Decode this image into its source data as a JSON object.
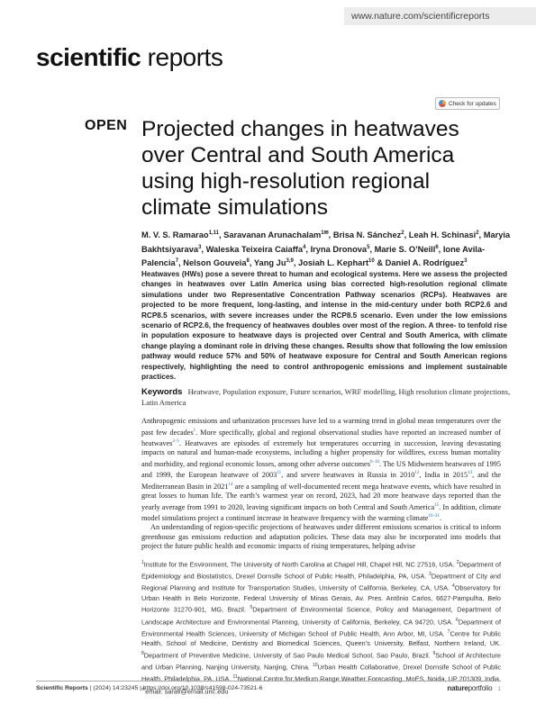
{
  "header": {
    "url": "www.nature.com/scientificreports"
  },
  "journal": {
    "bold": "scientific",
    "regular": " reports"
  },
  "check_for_updates": "Check for updates",
  "open_label": "OPEN",
  "title": "Projected changes in heatwaves over Central and South America using high-resolution regional climate simulations",
  "authors": [
    {
      "name": "M. V. S. Ramarao",
      "sup": "1,11",
      "sep": ", "
    },
    {
      "name": "Saravanan Arunachalam",
      "sup": "1✉",
      "sep": ", "
    },
    {
      "name": "Brisa N. Sánchez",
      "sup": "2",
      "sep": ", "
    },
    {
      "name": "Leah H. Schinasi",
      "sup": "2",
      "sep": ", "
    },
    {
      "name": "Maryia Bakhtsiyarava",
      "sup": "3",
      "sep": ", "
    },
    {
      "name": "Waleska Teixeira Caiaffa",
      "sup": "4",
      "sep": ", "
    },
    {
      "name": "Iryna Dronova",
      "sup": "5",
      "sep": ", "
    },
    {
      "name": "Marie S. O’Neill",
      "sup": "6",
      "sep": ", "
    },
    {
      "name": "Ione Avila-Palencia",
      "sup": "7",
      "sep": ", "
    },
    {
      "name": "Nelson Gouveia",
      "sup": "8",
      "sep": ", "
    },
    {
      "name": "Yang Ju",
      "sup": "3,9",
      "sep": ", "
    },
    {
      "name": "Josiah L. Kephart",
      "sup": "10",
      "sep": " & "
    },
    {
      "name": "Daniel A. Rodríguez",
      "sup": "3",
      "sep": ""
    }
  ],
  "abstract": "Heatwaves (HWs) pose a severe threat to human and ecological systems. Here we assess the projected changes in heatwaves over Latin America using bias corrected high-resolution regional climate simulations under two Representative Concentration Pathway scenarios (RCPs). Heatwaves are projected to be more frequent, long-lasting, and intense in the mid-century under both RCP2.6 and RCP8.5 scenarios, with severe increases under the RCP8.5 scenario. Even under the low emissions scenario of RCP2.6, the frequency of heatwaves doubles over most of the region. A three- to tenfold rise in population exposure to heatwave days is projected over Central and South America, with climate change playing a dominant role in driving these changes. Results show that following the low emission pathway would reduce 57% and 50% of heatwave exposure for Central and South American regions respectively, highlighting the need to control anthropogenic emissions and implement sustainable practices.",
  "keywords": {
    "label": "Keywords",
    "text": "Heatwave, Population exposure, Future scenarios, WRF modelling, High resolution climate projections, Latin America"
  },
  "body": {
    "p1": [
      {
        "t": "Anthropogenic emissions and urbanization processes have led to a warming trend in global mean temperatures over the past few decades"
      },
      {
        "s": "1"
      },
      {
        "t": ". More specifically, global and regional observational studies have reported an increased number of heatwaves"
      },
      {
        "s": "2–5"
      },
      {
        "t": ". Heatwaves are episodes of extremely hot temperatures occurring in succession, leaving devastating impacts on natural and human-made ecosystems, including a higher propensity for wildfires, excess human mortality and morbidity, and regional economic losses, among other adverse outcomes"
      },
      {
        "s": "6–10"
      },
      {
        "t": ". The US Midwestern heatwaves of 1995 and 1999, the European heatwave of 2003"
      },
      {
        "s": "11"
      },
      {
        "t": ", and severe heatwaves in Russia in 2010"
      },
      {
        "s": "12"
      },
      {
        "t": ", India in 2015"
      },
      {
        "s": "13"
      },
      {
        "t": ", and the Mediterranean Basin in 2021"
      },
      {
        "s": "14"
      },
      {
        "t": " are a sampling of well-documented recent mega heatwave events, which have resulted in great losses to human life. The earth’s warmest year on record, 2023, had 20 more heatwave days reported than the yearly average from 1991 to 2020, leaving significant impacts on both Central and South America"
      },
      {
        "s": "15"
      },
      {
        "t": ". In addition, climate model simulations project a continued increase in heatwave frequency with the warming climate"
      },
      {
        "s": "16–21"
      },
      {
        "t": "."
      }
    ],
    "p2": "An understanding of region-specific projections of heatwaves under different emissions scenarios is critical to inform greenhouse gas emissions reduction and adaptation policies. These data may also be incorporated into models that project the future public health and economic impacts of rising temperatures, helping advise"
  },
  "affiliations": [
    {
      "s": "1",
      "t": "Institute for the Environment, The University of North Carolina at Chapel Hill, Chapel Hill, NC 27516, USA. "
    },
    {
      "s": "2",
      "t": "Department of Epidemiology and Biostatistics, Drexel Dornsife School of Public Health, Philadelphia, PA, USA. "
    },
    {
      "s": "3",
      "t": "Department of City and Regional Planning and Institute for Transportation Studies, University of California, Berkeley, CA, USA. "
    },
    {
      "s": "4",
      "t": "Observatory for Urban Health in Belo Horizonte, Federal University of Minas Gerais, Av. Pres. Antônio Carlos, 6627-Pampulha, Belo Horizonte 31270-901, MG, Brazil. "
    },
    {
      "s": "5",
      "t": "Department of Environmental Science, Policy and Management, Department of Landscape Architecture and Environmental Planning, University of California, Berkeley, CA 94720, USA. "
    },
    {
      "s": "6",
      "t": "Department of Environmental Health Sciences, University of Michigan School of Public Health, Ann Arbor, MI, USA. "
    },
    {
      "s": "7",
      "t": "Centre for Public Health, School of Medicine, Dentistry and Biomedical Sciences, Queen’s University, Belfast, Northern Ireland, UK. "
    },
    {
      "s": "8",
      "t": "Department of Preventive Medicine, University of Sao Paulo Medical School, Sao Paulo, Brazil. "
    },
    {
      "s": "9",
      "t": "School of Architecture and Urban Planning, Nanjing University, Nanjing, China. "
    },
    {
      "s": "10",
      "t": "Urban Health Collaborative, Drexel Dornsife School of Public Health, Philadelphia, PA, USA. "
    },
    {
      "s": "11",
      "t": "National Centre for Medium Range Weather Forecasting, MoES, Noida, UP 201309, India. "
    },
    {
      "s": "✉",
      "t": "email: sarav@email.unc.edu"
    }
  ],
  "footer": {
    "journal": "Scientific Reports",
    "citation": "(2024) 14:23245",
    "doi": "https://doi.org/10.1038/s41598-024-73521-6",
    "brand_bold": "nature",
    "brand_regular": "portfolio",
    "page": "1"
  }
}
